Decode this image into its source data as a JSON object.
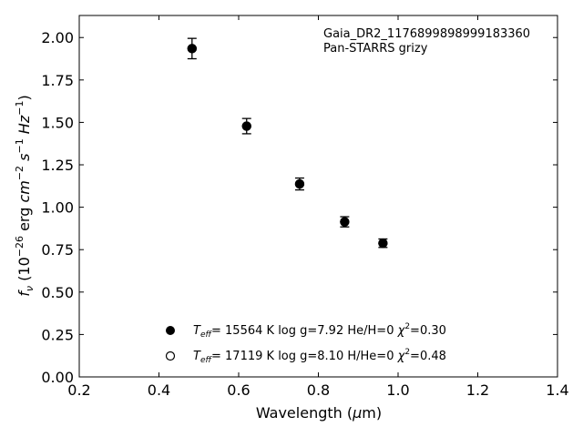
{
  "chart_data": {
    "type": "scatter",
    "title": "",
    "annotation_lines": [
      "Gaia_DR2_1176899898999183360",
      "Pan-STARRS grizy"
    ],
    "xlabel": "Wavelength (μm)",
    "ylabel": "f_ν (10^-26 erg cm^-2 s^-1 Hz^-1)",
    "xlim": [
      0.2,
      1.4
    ],
    "ylim": [
      0.0,
      2.13
    ],
    "xticks": [
      0.2,
      0.4,
      0.6,
      0.8,
      1.0,
      1.2,
      1.4
    ],
    "xtick_labels": [
      "0.2",
      "0.4",
      "0.6",
      "0.8",
      "1.0",
      "1.2",
      "1.4"
    ],
    "yticks": [
      0.0,
      0.25,
      0.5,
      0.75,
      1.0,
      1.25,
      1.5,
      1.75,
      2.0
    ],
    "ytick_labels": [
      "0.00",
      "0.25",
      "0.50",
      "0.75",
      "1.00",
      "1.25",
      "1.50",
      "1.75",
      "2.00"
    ],
    "grid": false,
    "legend_position": "bottom-center",
    "series": [
      {
        "name": "T_eff= 15564 K  log g=7.92  He/H=0  χ²=0.30",
        "marker": "filled-circle",
        "with_errorbars": true,
        "x": [
          0.483,
          0.62,
          0.753,
          0.866,
          0.962
        ],
        "y": [
          1.935,
          1.478,
          1.137,
          0.914,
          0.788
        ],
        "yerr": [
          0.06,
          0.045,
          0.035,
          0.03,
          0.025
        ]
      },
      {
        "name": "T_eff= 17119 K  log g=8.10  H/He=0  χ²=0.48",
        "marker": "open-circle",
        "with_errorbars": false,
        "x": [
          0.483,
          0.62,
          0.753,
          0.866,
          0.962
        ],
        "y": [
          1.935,
          1.478,
          1.137,
          0.914,
          0.788
        ]
      }
    ],
    "legend": [
      {
        "teff": "15564 K",
        "logg": "log g=7.92",
        "comp": "He/H=0",
        "chi2": "=0.30"
      },
      {
        "teff": "17119 K",
        "logg": "log g=8.10",
        "comp": "H/He=0",
        "chi2": "=0.48"
      }
    ]
  }
}
